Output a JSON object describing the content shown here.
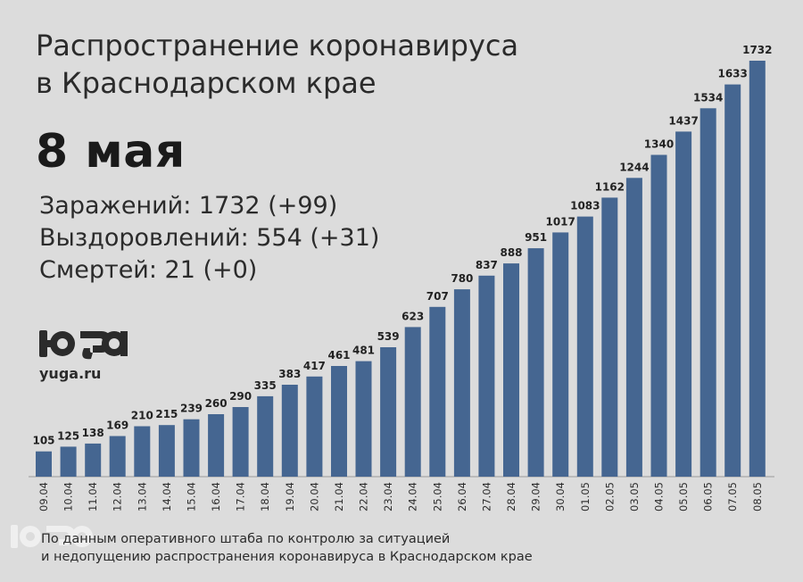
{
  "header": {
    "title_line1": "Распространение коронавируса",
    "title_line2": "в Краснодарском крае",
    "date": "8 мая"
  },
  "stats": {
    "infected": "Заражений: 1732 (+99)",
    "recovered": "Выздоровлений: 554 (+31)",
    "deaths": "Смертей: 21 (+0)"
  },
  "logo": {
    "site": "yuga.ru"
  },
  "footnote": {
    "line1": "По данным оперативного штаба по контролю за ситуацией",
    "line2": "и недопущению распространения коронавируса в Краснодарском крае"
  },
  "colors": {
    "bar": "#456691",
    "background": "#dcdcdc",
    "text": "#2b2b2b"
  },
  "chart_data": {
    "type": "bar",
    "categories": [
      "09.04",
      "10.04",
      "11.04",
      "12.04",
      "13.04",
      "14.04",
      "15.04",
      "16.04",
      "17.04",
      "18.04",
      "19.04",
      "20.04",
      "21.04",
      "22.04",
      "23.04",
      "24.04",
      "25.04",
      "26.04",
      "27.04",
      "28.04",
      "29.04",
      "30.04",
      "01.05",
      "02.05",
      "03.05",
      "04.05",
      "05.05",
      "06.05",
      "07.05",
      "08.05"
    ],
    "values": [
      105,
      125,
      138,
      169,
      210,
      215,
      239,
      260,
      290,
      335,
      383,
      417,
      461,
      481,
      539,
      623,
      707,
      780,
      837,
      888,
      951,
      1017,
      1083,
      1162,
      1244,
      1340,
      1437,
      1534,
      1633,
      1732
    ],
    "title": "",
    "xlabel": "",
    "ylabel": "",
    "ylim": [
      0,
      1732
    ],
    "grid": false,
    "data_labels": true
  }
}
